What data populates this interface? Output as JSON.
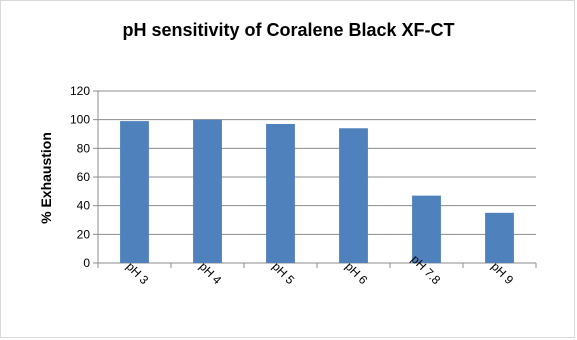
{
  "chart_data": {
    "type": "bar",
    "title": "pH sensitivity of Coralene Black XF-CT",
    "xlabel": "",
    "ylabel": "% Exhaustion",
    "categories": [
      "pH 3",
      "pH 4",
      "pH 5",
      "pH 6",
      "pH 7.8",
      "pH 9"
    ],
    "values": [
      99,
      100,
      97,
      94,
      47,
      35
    ],
    "ylim": [
      0,
      120
    ],
    "yticks": [
      0,
      20,
      40,
      60,
      80,
      100,
      120
    ],
    "grid": true,
    "legend": "none",
    "colors": {
      "bar": "#4f81bd",
      "grid": "#8c8c8c",
      "axis": "#8c8c8c"
    }
  }
}
